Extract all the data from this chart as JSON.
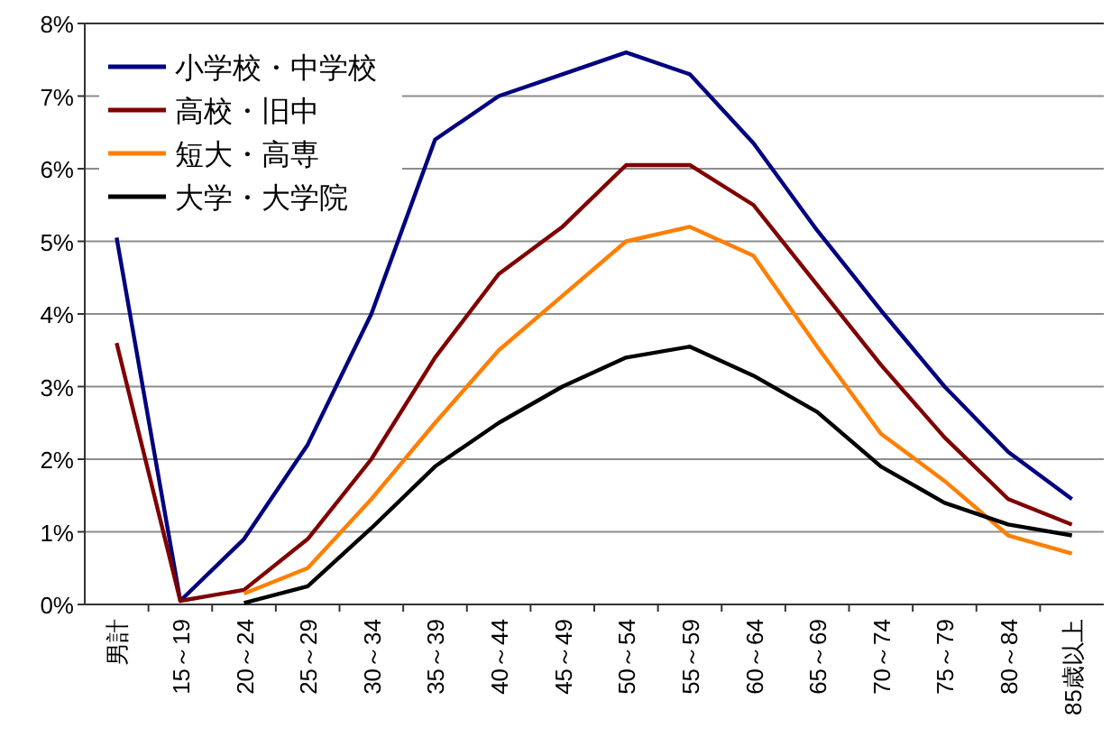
{
  "chart_data": {
    "type": "line",
    "categories": [
      "男計",
      "15～19",
      "20～24",
      "25～29",
      "30～34",
      "35～39",
      "40～44",
      "45～49",
      "50～54",
      "55～59",
      "60～64",
      "65～69",
      "70～74",
      "75～79",
      "80～84",
      "85歳以上"
    ],
    "series": [
      {
        "name": "小学校・中学校",
        "color": "#000080",
        "values": [
          5.05,
          0.05,
          0.9,
          2.2,
          4.0,
          6.4,
          7.0,
          7.3,
          7.6,
          7.3,
          6.35,
          5.15,
          4.05,
          3.0,
          2.1,
          1.45
        ]
      },
      {
        "name": "高校・旧中",
        "color": "#800000",
        "values": [
          3.6,
          0.05,
          0.2,
          0.9,
          2.0,
          3.4,
          4.55,
          5.2,
          6.05,
          6.05,
          5.5,
          4.4,
          3.3,
          2.3,
          1.45,
          1.1
        ]
      },
      {
        "name": "短大・高専",
        "color": "#ff7f00",
        "values": [
          null,
          null,
          0.15,
          0.5,
          1.45,
          2.5,
          3.5,
          4.25,
          5.0,
          5.2,
          4.8,
          3.55,
          2.35,
          1.7,
          0.95,
          0.7
        ]
      },
      {
        "name": "大学・大学院",
        "color": "#000000",
        "values": [
          null,
          null,
          0.02,
          0.25,
          1.05,
          1.9,
          2.5,
          3.0,
          3.4,
          3.55,
          3.15,
          2.65,
          1.9,
          1.4,
          1.1,
          0.95
        ]
      }
    ],
    "ylim": [
      0,
      8
    ],
    "yticks": [
      {
        "value": 0,
        "label": "0%"
      },
      {
        "value": 1,
        "label": "1%"
      },
      {
        "value": 2,
        "label": "2%"
      },
      {
        "value": 3,
        "label": "3%"
      },
      {
        "value": 4,
        "label": "4%"
      },
      {
        "value": 5,
        "label": "5%"
      },
      {
        "value": 6,
        "label": "6%"
      },
      {
        "value": 7,
        "label": "7%"
      },
      {
        "value": 8,
        "label": "8%"
      }
    ],
    "grid": "y",
    "legend": "top left",
    "marker": "none",
    "line_style": "solid"
  }
}
